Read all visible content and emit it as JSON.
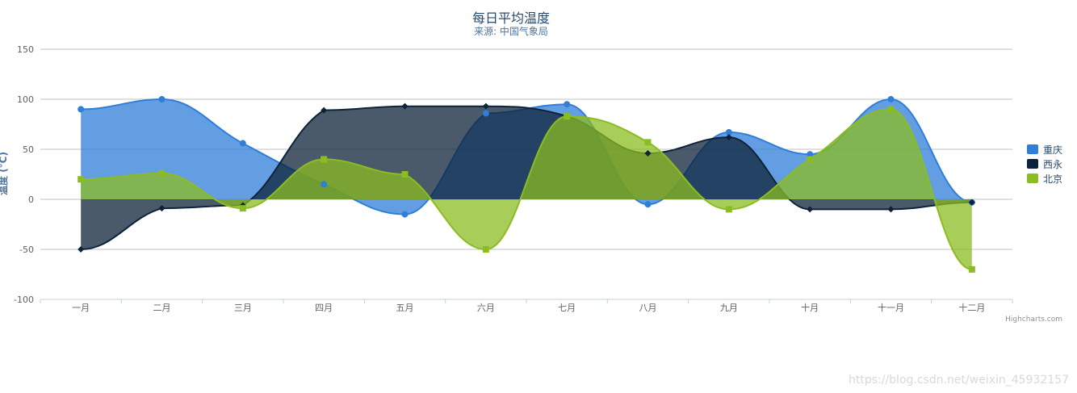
{
  "chart_data": {
    "type": "area",
    "title": "每日平均温度",
    "subtitle": "来源: 中国气象局",
    "ylabel": "温度 (°C)",
    "xlabel": "",
    "categories": [
      "一月",
      "二月",
      "三月",
      "四月",
      "五月",
      "六月",
      "七月",
      "八月",
      "九月",
      "十月",
      "十一月",
      "十二月"
    ],
    "ylim": [
      -100,
      150
    ],
    "yticks": [
      -100,
      -50,
      0,
      50,
      100,
      150
    ],
    "grid": true,
    "smooth": true,
    "legend_position": "right",
    "series": [
      {
        "name": "重庆",
        "color": "#2f7ed8",
        "marker": "circle",
        "values": [
          90,
          100,
          56,
          15,
          -15,
          86,
          95,
          -5,
          67,
          45,
          100,
          -3
        ]
      },
      {
        "name": "西永",
        "color": "#0d233a",
        "marker": "diamond",
        "values": [
          -50,
          -9,
          -6,
          89,
          93,
          93,
          83,
          46,
          62,
          -10,
          -10,
          -3
        ]
      },
      {
        "name": "北京",
        "color": "#8bbc21",
        "marker": "square",
        "values": [
          20,
          26,
          -9,
          40,
          25,
          -50,
          83,
          57,
          -10,
          40,
          90,
          -70
        ]
      }
    ]
  },
  "credits": "Highcharts.com",
  "watermark": "https://blog.csdn.net/weixin_45932157"
}
